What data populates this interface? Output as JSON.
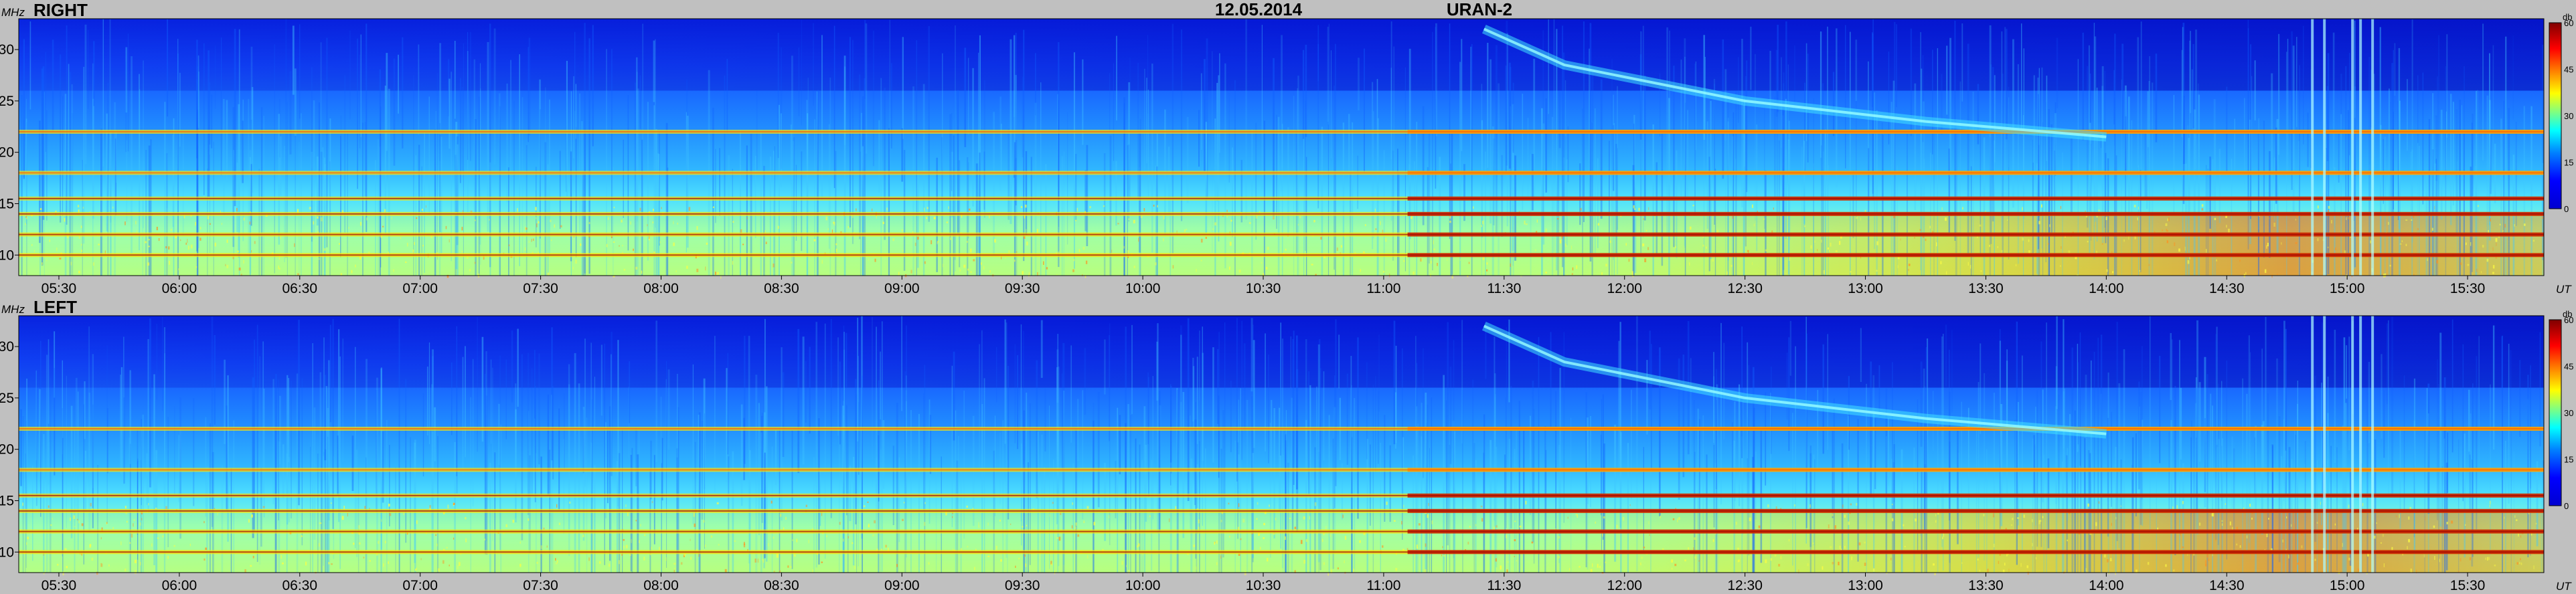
{
  "header": {
    "date": "12.05.2014",
    "instrument": "URAN-2"
  },
  "colors": {
    "background": "#c0c0c0",
    "colormap": [
      "#00008f",
      "#0000ff",
      "#0080ff",
      "#00ffff",
      "#80ff80",
      "#ffff00",
      "#ff8000",
      "#ff0000",
      "#800000"
    ]
  },
  "chart_data": [
    {
      "type": "heatmap",
      "panel_label": "RIGHT",
      "xlabel": "UT",
      "ylabel": "MHz",
      "x_ticks": [
        "05:30",
        "06:00",
        "06:30",
        "07:00",
        "07:30",
        "08:00",
        "08:30",
        "09:00",
        "09:30",
        "10:00",
        "10:30",
        "11:00",
        "11:30",
        "12:00",
        "12:30",
        "13:00",
        "13:30",
        "14:00",
        "14:30",
        "15:00",
        "15:30"
      ],
      "y_ticks": [
        "10",
        "15",
        "20",
        "25",
        "30"
      ],
      "colorbar": {
        "unit": "db",
        "ticks": [
          "60",
          "45",
          "30",
          "15",
          "0"
        ],
        "range": [
          0,
          60
        ]
      },
      "x_range": [
        "05:20",
        "15:49"
      ],
      "y_range": [
        8,
        33
      ],
      "features": {
        "drifting_burst": [
          {
            "time": "11:25",
            "freq_mhz": 32
          },
          {
            "time": "11:45",
            "freq_mhz": 28.5
          },
          {
            "time": "12:30",
            "freq_mhz": 25
          },
          {
            "time": "13:15",
            "freq_mhz": 23
          },
          {
            "time": "14:00",
            "freq_mhz": 21.5
          }
        ],
        "interference_lines_mhz": [
          10,
          12,
          14,
          15.5,
          18,
          22
        ]
      }
    },
    {
      "type": "heatmap",
      "panel_label": "LEFT",
      "xlabel": "UT",
      "ylabel": "MHz",
      "x_ticks": [
        "05:30",
        "06:00",
        "06:30",
        "07:00",
        "07:30",
        "08:00",
        "08:30",
        "09:00",
        "09:30",
        "10:00",
        "10:30",
        "11:00",
        "11:30",
        "12:00",
        "12:30",
        "13:00",
        "13:30",
        "14:00",
        "14:30",
        "15:00",
        "15:30"
      ],
      "y_ticks": [
        "10",
        "15",
        "20",
        "25",
        "30"
      ],
      "colorbar": {
        "unit": "db",
        "ticks": [
          "60",
          "45",
          "30",
          "15",
          "0"
        ],
        "range": [
          0,
          60
        ]
      },
      "x_range": [
        "05:20",
        "15:49"
      ],
      "y_range": [
        8,
        33
      ],
      "features": {
        "drifting_burst": [
          {
            "time": "11:25",
            "freq_mhz": 32
          },
          {
            "time": "11:45",
            "freq_mhz": 28.5
          },
          {
            "time": "12:30",
            "freq_mhz": 25
          },
          {
            "time": "13:15",
            "freq_mhz": 23
          },
          {
            "time": "14:00",
            "freq_mhz": 21.5
          }
        ],
        "interference_lines_mhz": [
          10,
          12,
          14,
          15.5,
          18,
          22
        ]
      }
    }
  ]
}
